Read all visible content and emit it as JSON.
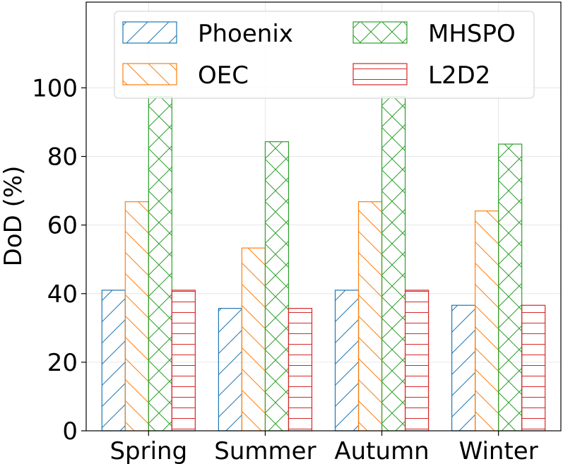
{
  "chart_data": {
    "type": "bar",
    "title": "",
    "xlabel": "",
    "ylabel": "DoD (%)",
    "ylim": [
      0,
      125
    ],
    "yticks": [
      0,
      20,
      40,
      60,
      80,
      100
    ],
    "grid": true,
    "legend_position": "top",
    "categories": [
      "Spring",
      "Summer",
      "Autumn",
      "Winter"
    ],
    "series": [
      {
        "name": "Phoenix",
        "color": "#1f77b4",
        "hatch": "diagonal-up",
        "values": [
          41,
          35.7,
          41,
          36.6
        ]
      },
      {
        "name": "OEC",
        "color": "#ff7f0e",
        "hatch": "diagonal-down",
        "values": [
          66.8,
          53.3,
          66.8,
          64.1
        ]
      },
      {
        "name": "MHSPO",
        "color": "#2ca02c",
        "hatch": "cross",
        "values": [
          97.5,
          84.3,
          97.5,
          83.6
        ]
      },
      {
        "name": "L2D2",
        "color": "#d62728",
        "hatch": "horizontal",
        "values": [
          41,
          35.7,
          41,
          36.6
        ]
      }
    ]
  }
}
